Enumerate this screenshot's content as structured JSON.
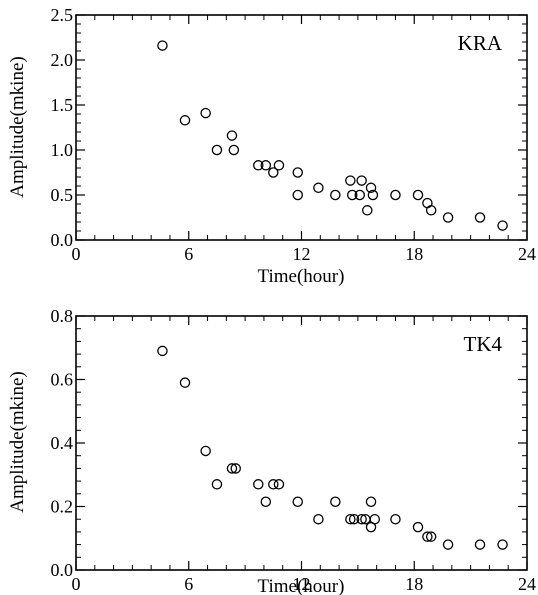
{
  "chart_data": [
    {
      "type": "scatter",
      "panel_label": "KRA",
      "xlabel": "Time(hour)",
      "ylabel": "Amplitude(mkine)",
      "xlim": [
        0,
        24
      ],
      "ylim": [
        0.0,
        2.5
      ],
      "xticks": [
        0,
        6,
        12,
        18,
        24
      ],
      "yticks": [
        0.0,
        0.5,
        1.0,
        1.5,
        2.0,
        2.5
      ],
      "xtick_labels": [
        "0",
        "6",
        "12",
        "18",
        "24"
      ],
      "ytick_labels": [
        "0.0",
        "0.5",
        "1.0",
        "1.5",
        "2.0",
        "2.5"
      ],
      "marker": "open-circle",
      "points": [
        {
          "x": 4.6,
          "y": 2.16
        },
        {
          "x": 5.8,
          "y": 1.33
        },
        {
          "x": 6.9,
          "y": 1.41
        },
        {
          "x": 7.5,
          "y": 1.0
        },
        {
          "x": 8.3,
          "y": 1.16
        },
        {
          "x": 8.4,
          "y": 1.0
        },
        {
          "x": 9.7,
          "y": 0.83
        },
        {
          "x": 10.1,
          "y": 0.83
        },
        {
          "x": 10.5,
          "y": 0.75
        },
        {
          "x": 10.8,
          "y": 0.83
        },
        {
          "x": 11.8,
          "y": 0.75
        },
        {
          "x": 11.8,
          "y": 0.5
        },
        {
          "x": 12.9,
          "y": 0.58
        },
        {
          "x": 13.8,
          "y": 0.5
        },
        {
          "x": 14.6,
          "y": 0.66
        },
        {
          "x": 14.7,
          "y": 0.5
        },
        {
          "x": 15.1,
          "y": 0.5
        },
        {
          "x": 15.2,
          "y": 0.66
        },
        {
          "x": 15.5,
          "y": 0.33
        },
        {
          "x": 15.7,
          "y": 0.58
        },
        {
          "x": 15.8,
          "y": 0.5
        },
        {
          "x": 17.0,
          "y": 0.5
        },
        {
          "x": 18.2,
          "y": 0.5
        },
        {
          "x": 18.7,
          "y": 0.41
        },
        {
          "x": 18.9,
          "y": 0.33
        },
        {
          "x": 19.8,
          "y": 0.25
        },
        {
          "x": 21.5,
          "y": 0.25
        },
        {
          "x": 22.7,
          "y": 0.16
        }
      ]
    },
    {
      "type": "scatter",
      "panel_label": "TK4",
      "xlabel": "Time(hour)",
      "ylabel": "Amplitude(mkine)",
      "xlim": [
        0,
        24
      ],
      "ylim": [
        0.0,
        0.8
      ],
      "xticks": [
        0,
        6,
        12,
        18,
        24
      ],
      "yticks": [
        0.0,
        0.2,
        0.4,
        0.6,
        0.8
      ],
      "xtick_labels": [
        "0",
        "6",
        "12",
        "18",
        "24"
      ],
      "ytick_labels": [
        "0.0",
        "0.2",
        "0.4",
        "0.6",
        "0.8"
      ],
      "marker": "open-circle",
      "points": [
        {
          "x": 4.6,
          "y": 0.69
        },
        {
          "x": 5.8,
          "y": 0.59
        },
        {
          "x": 6.9,
          "y": 0.375
        },
        {
          "x": 7.5,
          "y": 0.27
        },
        {
          "x": 8.3,
          "y": 0.32
        },
        {
          "x": 8.5,
          "y": 0.32
        },
        {
          "x": 9.7,
          "y": 0.27
        },
        {
          "x": 10.1,
          "y": 0.215
        },
        {
          "x": 10.5,
          "y": 0.27
        },
        {
          "x": 10.8,
          "y": 0.27
        },
        {
          "x": 11.8,
          "y": 0.215
        },
        {
          "x": 12.9,
          "y": 0.16
        },
        {
          "x": 13.8,
          "y": 0.215
        },
        {
          "x": 14.6,
          "y": 0.16
        },
        {
          "x": 14.8,
          "y": 0.16
        },
        {
          "x": 15.2,
          "y": 0.16
        },
        {
          "x": 15.4,
          "y": 0.16
        },
        {
          "x": 15.7,
          "y": 0.215
        },
        {
          "x": 15.7,
          "y": 0.135
        },
        {
          "x": 15.9,
          "y": 0.16
        },
        {
          "x": 17.0,
          "y": 0.16
        },
        {
          "x": 18.2,
          "y": 0.135
        },
        {
          "x": 18.7,
          "y": 0.105
        },
        {
          "x": 18.9,
          "y": 0.105
        },
        {
          "x": 19.8,
          "y": 0.08
        },
        {
          "x": 21.5,
          "y": 0.08
        },
        {
          "x": 22.7,
          "y": 0.08
        }
      ]
    }
  ]
}
